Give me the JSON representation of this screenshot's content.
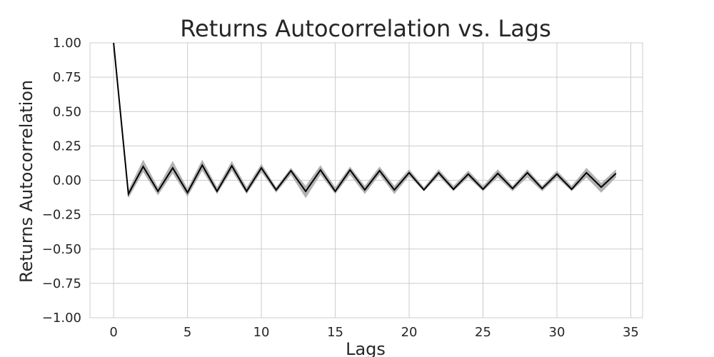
{
  "chart_data": {
    "type": "line",
    "title": "Returns Autocorrelation vs. Lags",
    "xlabel": "Lags",
    "ylabel": "Returns Autocorrelation",
    "xlim": [
      -1.6,
      35.8
    ],
    "ylim": [
      -1.0,
      1.0
    ],
    "grid": true,
    "x_ticks": [
      0,
      5,
      10,
      15,
      20,
      25,
      30,
      35
    ],
    "x_tick_labels": [
      "0",
      "5",
      "10",
      "15",
      "20",
      "25",
      "30",
      "35"
    ],
    "y_ticks": [
      1.0,
      0.75,
      0.5,
      0.25,
      0.0,
      -0.25,
      -0.5,
      -0.75,
      -1.0
    ],
    "y_tick_labels": [
      "1.00",
      "0.75",
      "0.50",
      "0.25",
      "0.00",
      "−0.25",
      "−0.50",
      "−0.75",
      "−1.00"
    ],
    "series": [
      {
        "line_color": "#000000",
        "band_color": "#aaaaaa",
        "x": [
          0,
          1,
          2,
          3,
          4,
          5,
          6,
          7,
          8,
          9,
          10,
          11,
          12,
          13,
          14,
          15,
          16,
          17,
          18,
          19,
          20,
          21,
          22,
          23,
          24,
          25,
          26,
          27,
          28,
          29,
          30,
          31,
          32,
          33,
          34
        ],
        "values": [
          1.0,
          -0.1,
          0.1,
          -0.08,
          0.09,
          -0.09,
          0.11,
          -0.08,
          0.105,
          -0.08,
          0.09,
          -0.07,
          0.07,
          -0.08,
          0.075,
          -0.08,
          0.075,
          -0.07,
          0.07,
          -0.07,
          0.055,
          -0.07,
          0.055,
          -0.065,
          0.045,
          -0.065,
          0.05,
          -0.06,
          0.055,
          -0.06,
          0.045,
          -0.065,
          0.055,
          -0.05,
          0.05
        ],
        "band_low": [
          1.0,
          -0.13,
          0.06,
          -0.11,
          0.05,
          -0.12,
          0.07,
          -0.1,
          0.07,
          -0.1,
          0.06,
          -0.09,
          0.04,
          -0.13,
          0.04,
          -0.1,
          0.04,
          -0.1,
          0.04,
          -0.1,
          0.03,
          -0.08,
          0.03,
          -0.08,
          0.02,
          -0.08,
          0.02,
          -0.08,
          0.02,
          -0.08,
          0.02,
          -0.08,
          0.02,
          -0.09,
          0.02
        ],
        "band_high": [
          1.0,
          -0.07,
          0.15,
          -0.05,
          0.14,
          -0.06,
          0.15,
          -0.05,
          0.14,
          -0.05,
          0.12,
          -0.05,
          0.09,
          -0.04,
          0.11,
          -0.05,
          0.1,
          -0.04,
          0.1,
          -0.04,
          0.08,
          -0.05,
          0.08,
          -0.04,
          0.07,
          -0.04,
          0.08,
          -0.04,
          0.08,
          -0.04,
          0.07,
          -0.04,
          0.09,
          -0.02,
          0.08
        ]
      }
    ]
  }
}
